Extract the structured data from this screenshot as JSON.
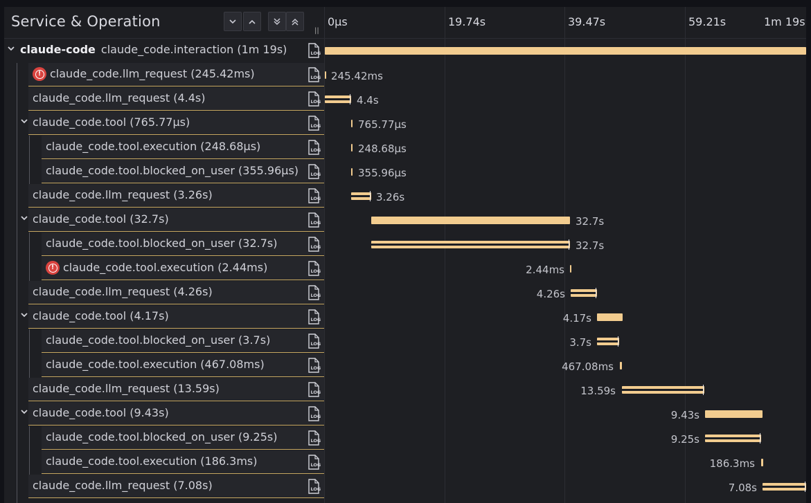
{
  "header": {
    "title": "Service & Operation",
    "buttons": [
      "collapse-one",
      "expand-one",
      "collapse-all",
      "expand-all"
    ],
    "ticks": [
      "0µs",
      "19.74s",
      "39.47s",
      "59.21s",
      "1m 19s"
    ]
  },
  "root": {
    "service": "claude-code",
    "operation": "claude_code.interaction (1m 19s)"
  },
  "spans": [
    {
      "label": "claude_code.llm_request (245.42ms)",
      "duration": "245.42ms",
      "error": true
    },
    {
      "label": "claude_code.llm_request (4.4s)",
      "duration": "4.4s",
      "error": false
    },
    {
      "label": "claude_code.tool (765.77µs)",
      "duration": "765.77µs",
      "error": false
    },
    {
      "label": "claude_code.tool.execution (248.68µs)",
      "duration": "248.68µs",
      "error": false
    },
    {
      "label": "claude_code.tool.blocked_on_user (355.96µs)",
      "duration": "355.96µs",
      "error": false
    },
    {
      "label": "claude_code.llm_request (3.26s)",
      "duration": "3.26s",
      "error": false
    },
    {
      "label": "claude_code.tool (32.7s)",
      "duration": "32.7s",
      "error": false
    },
    {
      "label": "claude_code.tool.blocked_on_user (32.7s)",
      "duration": "32.7s",
      "error": false
    },
    {
      "label": "claude_code.tool.execution (2.44ms)",
      "duration": "2.44ms",
      "error": true
    },
    {
      "label": "claude_code.llm_request (4.26s)",
      "duration": "4.26s",
      "error": false
    },
    {
      "label": "claude_code.tool (4.17s)",
      "duration": "4.17s",
      "error": false
    },
    {
      "label": "claude_code.tool.blocked_on_user (3.7s)",
      "duration": "3.7s",
      "error": false
    },
    {
      "label": "claude_code.tool.execution (467.08ms)",
      "duration": "467.08ms",
      "error": false
    },
    {
      "label": "claude_code.llm_request (13.59s)",
      "duration": "13.59s",
      "error": false
    },
    {
      "label": "claude_code.tool (9.43s)",
      "duration": "9.43s",
      "error": false
    },
    {
      "label": "claude_code.tool.blocked_on_user (9.25s)",
      "duration": "9.25s",
      "error": false
    },
    {
      "label": "claude_code.tool.execution (186.3ms)",
      "duration": "186.3ms",
      "error": false
    },
    {
      "label": "claude_code.llm_request (7.08s)",
      "duration": "7.08s",
      "error": false
    }
  ],
  "colors": {
    "bar": "#f2cc8f",
    "error": "#d9433f",
    "background": "#1e1f23"
  },
  "icons": {
    "log": "log-icon",
    "error": "error-icon",
    "chevron": "chevron-down-icon"
  }
}
